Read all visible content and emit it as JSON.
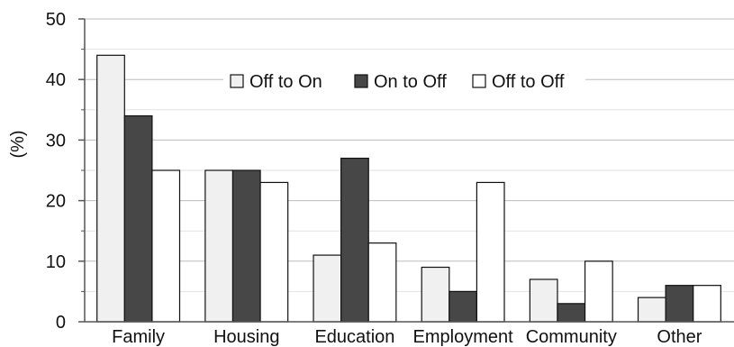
{
  "chart_data": {
    "type": "bar",
    "title": "",
    "xlabel": "",
    "ylabel": "(%)",
    "ylim": [
      0,
      50
    ],
    "yticks": [
      0,
      10,
      20,
      30,
      40,
      50
    ],
    "categories": [
      "Family",
      "Housing",
      "Education",
      "Employment",
      "Community",
      "Other"
    ],
    "series": [
      {
        "name": "Off to On",
        "color": "#f0f0f0",
        "values": [
          44,
          25,
          11,
          9,
          7,
          4
        ]
      },
      {
        "name": "On to Off",
        "color": "#474747",
        "values": [
          34,
          25,
          27,
          5,
          3,
          6
        ]
      },
      {
        "name": "Off to Off",
        "color": "#ffffff",
        "values": [
          25,
          23,
          13,
          23,
          10,
          6
        ]
      }
    ],
    "legend": {
      "position": "top-center"
    },
    "grid": {
      "major": true,
      "minor": true,
      "major_color": "#bdbdbd",
      "minor_color": "#e2e2e2"
    },
    "bar_stroke_color": "#111111"
  }
}
